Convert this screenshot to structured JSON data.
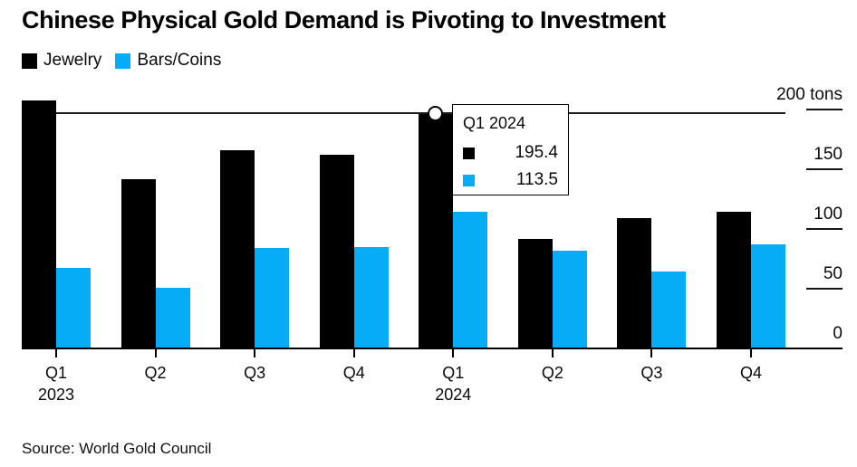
{
  "title": "Chinese Physical Gold Demand is Pivoting to Investment",
  "source": "Source: World Gold Council",
  "colors": {
    "jewelry": "#000000",
    "bars_coins": "#07acf7",
    "background": "#ffffff",
    "axis": "#000000"
  },
  "legend": [
    {
      "label": "Jewelry",
      "color": "#000000"
    },
    {
      "label": "Bars/Coins",
      "color": "#07acf7"
    }
  ],
  "tooltip": {
    "title": "Q1 2024",
    "rows": [
      {
        "series": "Jewelry",
        "color": "#000000",
        "value": "195.4"
      },
      {
        "series": "Bars/Coins",
        "color": "#07acf7",
        "value": "113.5"
      }
    ]
  },
  "chart_data": {
    "type": "bar",
    "categories": [
      "Q1 2023",
      "Q2 2023",
      "Q3 2023",
      "Q4 2023",
      "Q1 2024",
      "Q2 2024",
      "Q3 2024",
      "Q4 2024"
    ],
    "x_labels": [
      {
        "quarter": "Q1",
        "year": "2023"
      },
      {
        "quarter": "Q2"
      },
      {
        "quarter": "Q3"
      },
      {
        "quarter": "Q4"
      },
      {
        "quarter": "Q1",
        "year": "2024"
      },
      {
        "quarter": "Q2"
      },
      {
        "quarter": "Q3"
      },
      {
        "quarter": "Q4"
      }
    ],
    "series": [
      {
        "name": "Jewelry",
        "color": "#000000",
        "values": [
          207,
          141,
          165,
          161,
          195.4,
          91,
          108,
          114
        ]
      },
      {
        "name": "Bars/Coins",
        "color": "#07acf7",
        "values": [
          67,
          50,
          83,
          84,
          113.5,
          81,
          64,
          86
        ]
      }
    ],
    "title": "Chinese Physical Gold Demand is Pivoting to Investment",
    "xlabel": "",
    "ylabel": "tons",
    "ylim": [
      0,
      210
    ],
    "yticks": [
      {
        "value": 200,
        "label": "200 tons"
      },
      {
        "value": 150,
        "label": "150"
      },
      {
        "value": 100,
        "label": "100"
      },
      {
        "value": 50,
        "label": "50"
      },
      {
        "value": 0,
        "label": "0"
      }
    ],
    "grid": false,
    "legend_position": "top-left",
    "highlight": {
      "category": "Q1 2024",
      "category_index": 4,
      "crosshair_series": "Jewelry",
      "crosshair_value": 195.4
    }
  }
}
